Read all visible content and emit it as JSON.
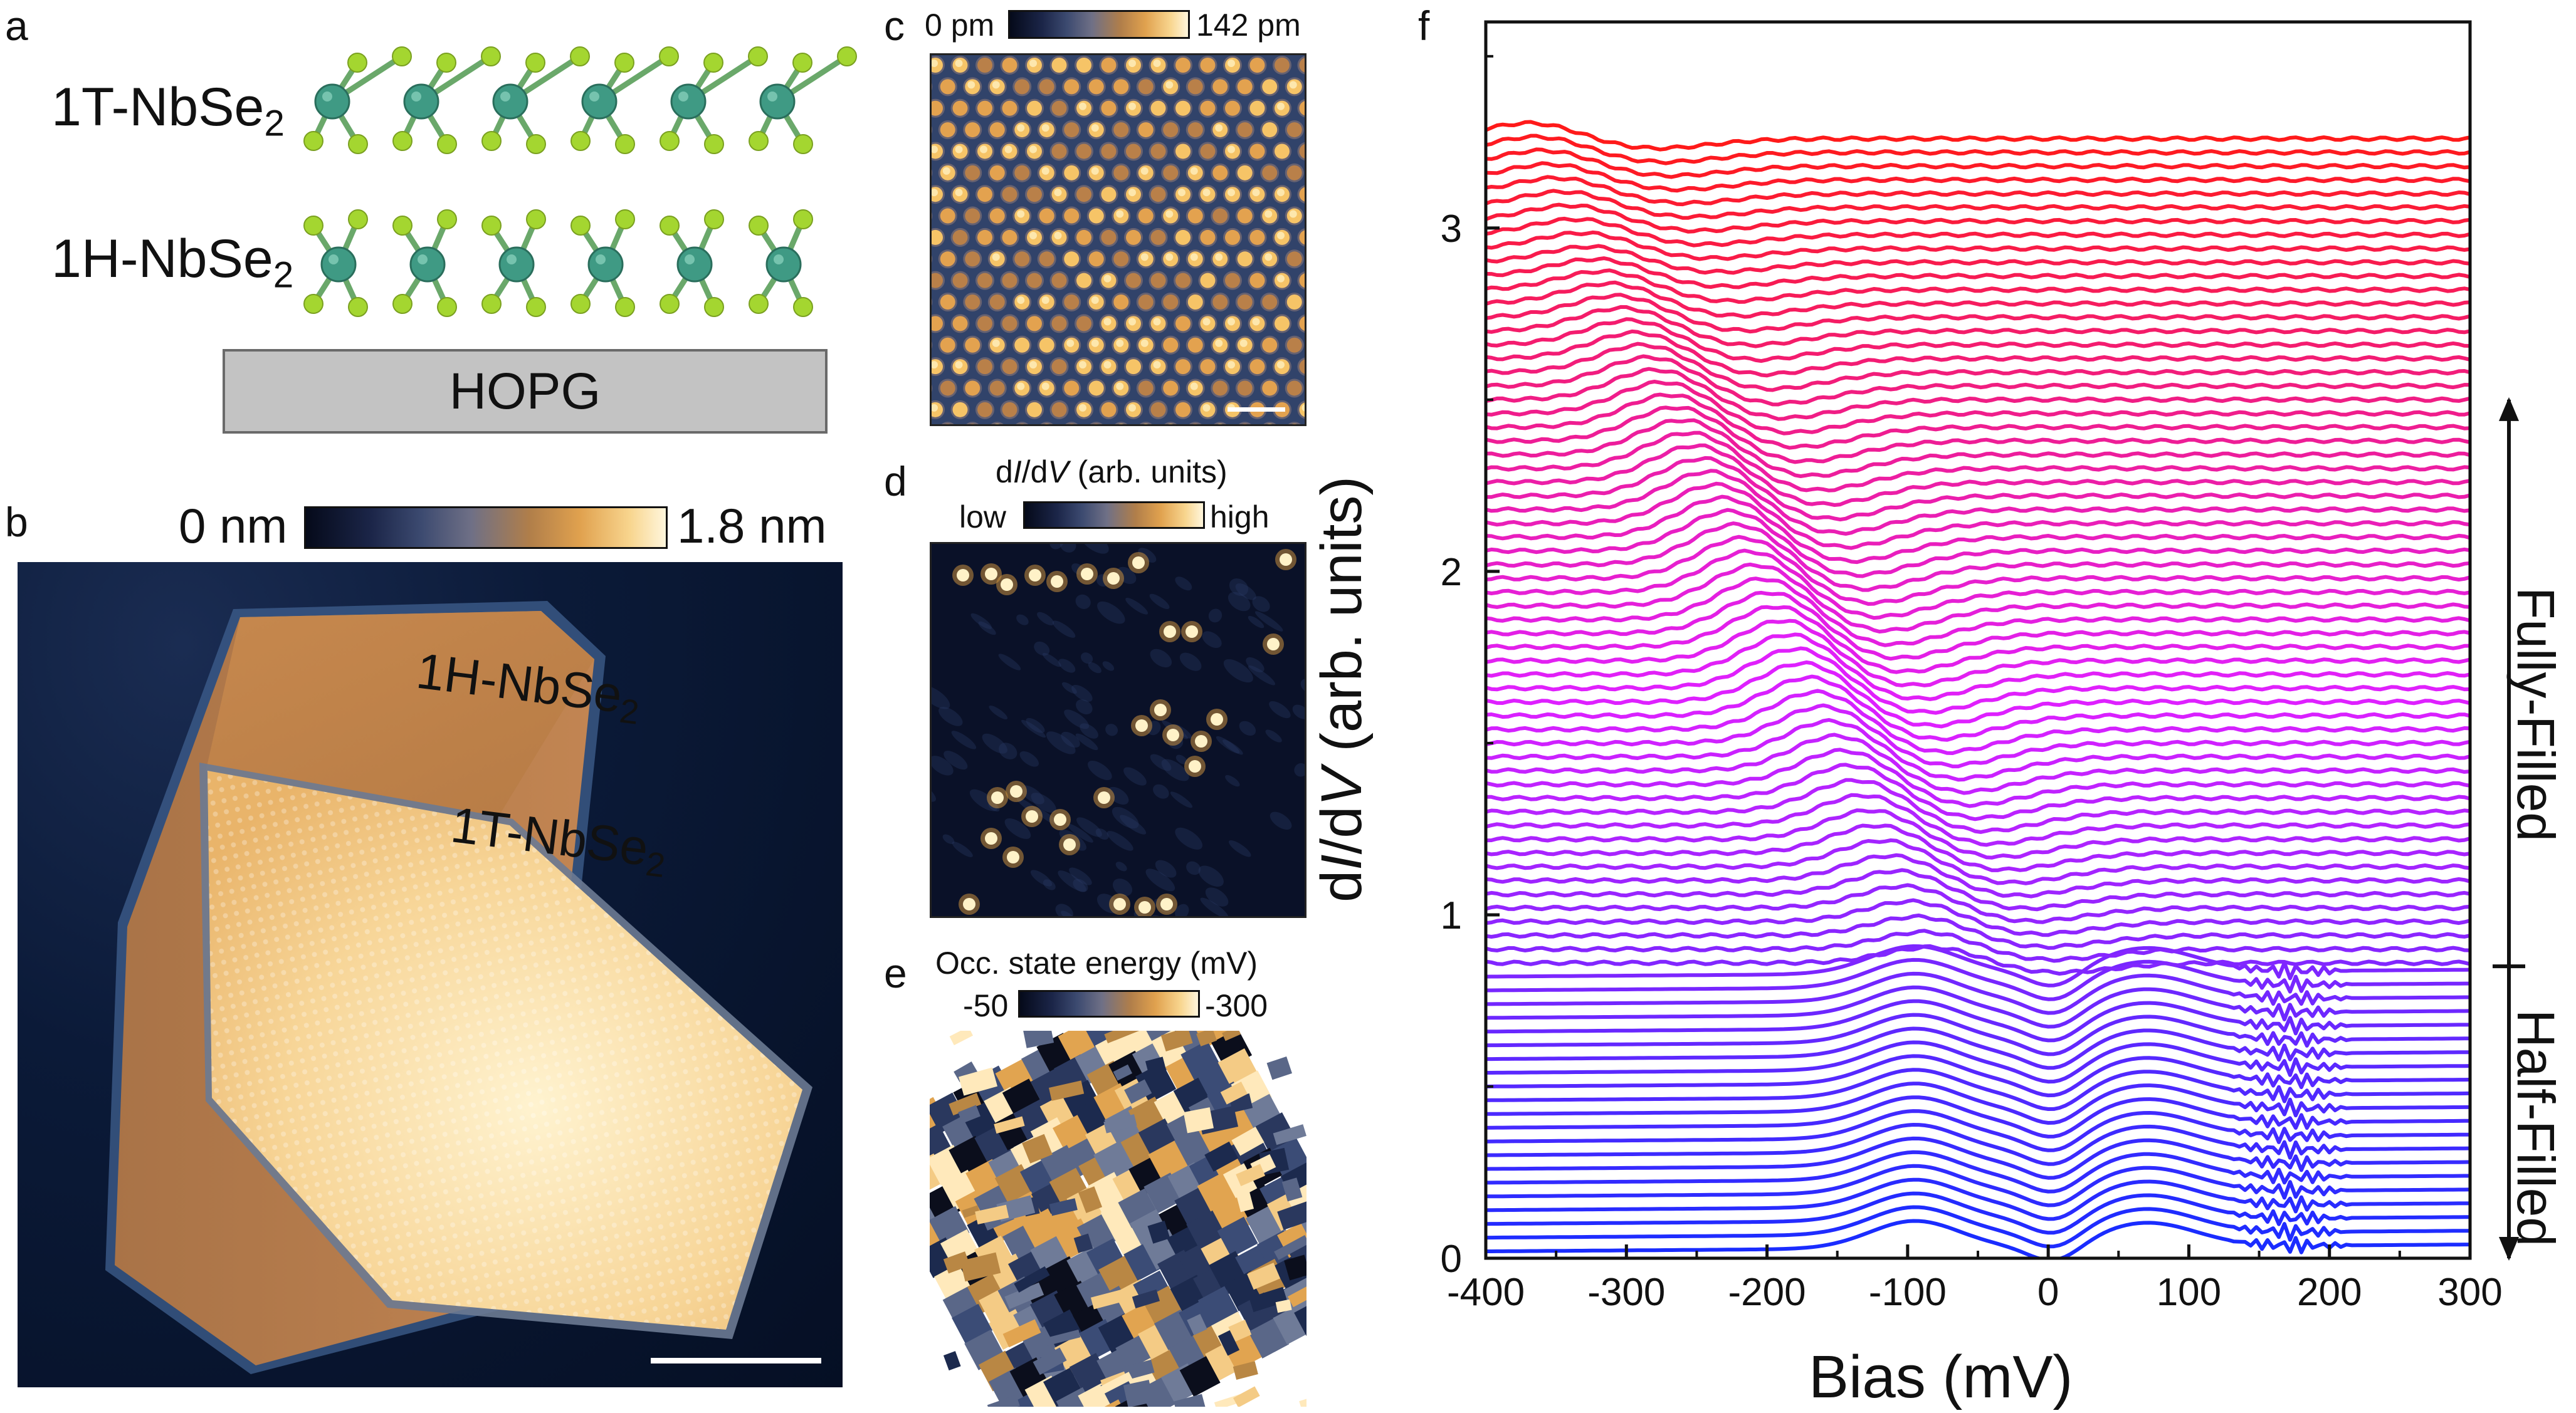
{
  "panels": {
    "a": {
      "label": "a",
      "layer_top": {
        "text": "1T-NbSe",
        "sub": "2"
      },
      "layer_bottom": {
        "text": "1H-NbSe",
        "sub": "2"
      },
      "substrate": "HOPG"
    },
    "b": {
      "label": "b",
      "colorbar_min": "0 nm",
      "colorbar_max": "1.8 nm",
      "label_1h": {
        "text": "1H-NbSe",
        "sub": "2"
      },
      "label_1t": {
        "text": "1T-NbSe",
        "sub": "2"
      }
    },
    "c": {
      "label": "c",
      "colorbar_min": "0 pm",
      "colorbar_max": "142 pm"
    },
    "d": {
      "label": "d",
      "colorbar_title_pre": "d",
      "colorbar_title_i": "I",
      "colorbar_title_mid": "/d",
      "colorbar_title_v": "V",
      "colorbar_title_post": " (arb. units)",
      "colorbar_min": "low",
      "colorbar_max": "high"
    },
    "e": {
      "label": "e",
      "colorbar_title": "Occ. state energy (mV)",
      "colorbar_min": "-50",
      "colorbar_max": "-300"
    },
    "f": {
      "label": "f"
    }
  },
  "chart_data": {
    "type": "line",
    "title": "",
    "xlabel": "Bias (mV)",
    "ylabel_parts": {
      "pre": "d",
      "i": "I",
      "mid": "/d",
      "v": "V",
      "post": " (arb. units)"
    },
    "xlim": [
      -400,
      300
    ],
    "ylim": [
      0,
      3.6
    ],
    "xticks": [
      "-400",
      "-300",
      "-200",
      "-100",
      "0",
      "100",
      "200",
      "300"
    ],
    "yticks": [
      "0",
      "1",
      "2",
      "3"
    ],
    "series_count": 82,
    "offset_step": 0.04,
    "half_filled_count": 21,
    "color_bottom": "#1a2cff",
    "color_middle": "#e020ff",
    "color_top": "#ff1a1a",
    "regions": [
      {
        "name": "Half-Filled",
        "y_range": [
          0,
          0.85
        ]
      },
      {
        "name": "Fully-Filled",
        "y_range": [
          0.85,
          2.5
        ]
      }
    ]
  }
}
